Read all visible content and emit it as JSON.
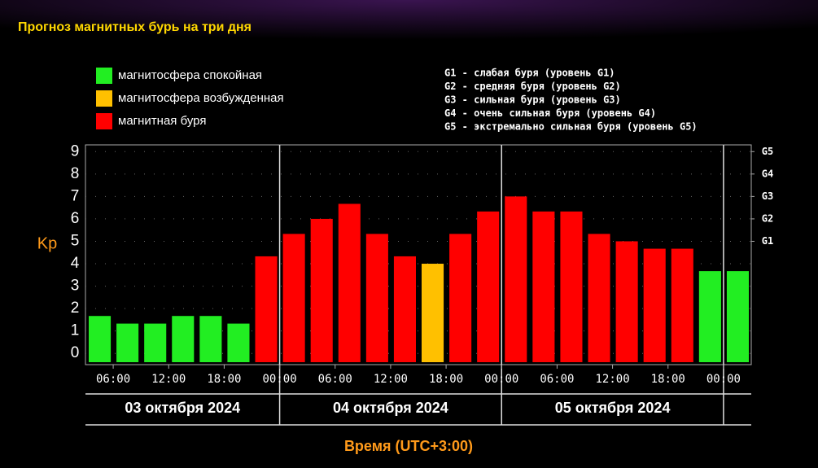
{
  "chart_data": {
    "type": "bar",
    "title": "Прогноз магнитных бурь на три дня",
    "ylabel": "Kp",
    "xlabel": "Время (UTC+3:00)",
    "legend": [
      {
        "name": "магнитосфера спокойная",
        "color": "#22ee22"
      },
      {
        "name": "магнитосфера возбужденная",
        "color": "#ffc000"
      },
      {
        "name": "магнитная буря",
        "color": "#ff0000"
      }
    ],
    "storm_levels": [
      "G1 - слабая буря (уровень G1)",
      "G2 - средняя буря (уровень G2)",
      "G3 - сильная буря (уровень G3)",
      "G4 - очень сильная буря (уровень G4)",
      "G5 - экстремально сильная буря (уровень G5)"
    ],
    "x": [
      3,
      6,
      9,
      12,
      15,
      18,
      21,
      24,
      27,
      30,
      33,
      36,
      39,
      42,
      45,
      48,
      51,
      54,
      57,
      60,
      63,
      66,
      69,
      72
    ],
    "series": [
      {
        "values": [
          1.67,
          1.33,
          1.33,
          1.67,
          1.67,
          1.33,
          4.33,
          5.33,
          6,
          6.67,
          5.33,
          4.33,
          4,
          5.33,
          6.33,
          7,
          6.33,
          6.33,
          5.33,
          5,
          4.67,
          4.67,
          3.67,
          3.67
        ],
        "colors": [
          "#22ee22",
          "#22ee22",
          "#22ee22",
          "#22ee22",
          "#22ee22",
          "#22ee22",
          "#ff0000",
          "#ff0000",
          "#ff0000",
          "#ff0000",
          "#ff0000",
          "#ff0000",
          "#ffc000",
          "#ff0000",
          "#ff0000",
          "#ff0000",
          "#ff0000",
          "#ff0000",
          "#ff0000",
          "#ff0000",
          "#ff0000",
          "#ff0000",
          "#22ee22",
          "#22ee22"
        ]
      }
    ],
    "bar_width": 3,
    "xlim": [
      3,
      75
    ],
    "xticks": [
      {
        "value": 6,
        "label": "06:00"
      },
      {
        "value": 12,
        "label": "12:00"
      },
      {
        "value": 18,
        "label": "18:00"
      },
      {
        "value": 24,
        "label": "00:00"
      },
      {
        "value": 30,
        "label": "06:00"
      },
      {
        "value": 36,
        "label": "12:00"
      },
      {
        "value": 42,
        "label": "18:00"
      },
      {
        "value": 48,
        "label": "00:00"
      },
      {
        "value": 54,
        "label": "06:00"
      },
      {
        "value": 60,
        "label": "12:00"
      },
      {
        "value": 66,
        "label": "18:00"
      },
      {
        "value": 72,
        "label": "00:00"
      }
    ],
    "day_lines": [
      24,
      48,
      72
    ],
    "dates": [
      {
        "label": "03 октября 2024",
        "start": 3,
        "end": 24
      },
      {
        "label": "04 октября 2024",
        "start": 24,
        "end": 48
      },
      {
        "label": "05 октября 2024",
        "start": 48,
        "end": 72
      }
    ],
    "ylim": [
      -0.5,
      9.3
    ],
    "yticks": [
      0,
      1,
      2,
      3,
      4,
      5,
      6,
      7,
      8,
      9
    ],
    "y2ticks": [
      {
        "value": 5,
        "label": "G1"
      },
      {
        "value": 6,
        "label": "G2"
      },
      {
        "value": 7,
        "label": "G3"
      },
      {
        "value": 8,
        "label": "G4"
      },
      {
        "value": 9,
        "label": "G5"
      }
    ],
    "grid": true
  }
}
